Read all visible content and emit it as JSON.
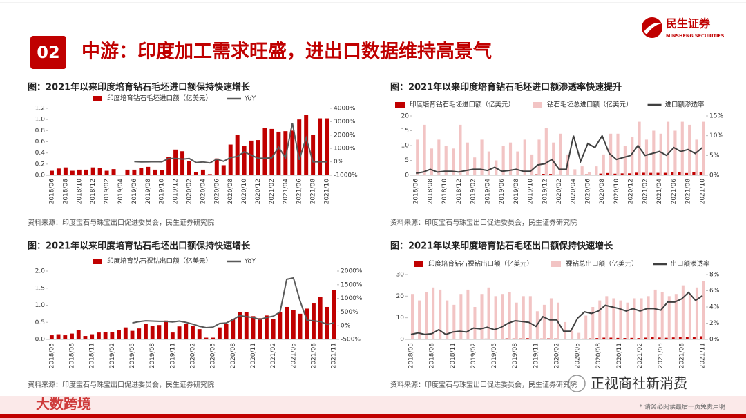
{
  "header": {
    "badge": "02",
    "title": "中游：印度加工需求旺盛，进出口数据维持高景气",
    "logo_cn": "民生证券",
    "logo_en": "MINSHENG SECURITIES"
  },
  "footer": {
    "watermark": "大数跨境",
    "wechat": "正视商社新消费",
    "disclaimer": "* 请务必阅读最后一页免责声明"
  },
  "chart_data": [
    {
      "type": "combo",
      "title": "图：2021年以来印度培育钻石毛坯进口额保持快速增长",
      "source": "资料来源：印度宝石与珠宝出口促进委员会，民生证券研究院",
      "categories": [
        "2018/06",
        null,
        "2018/08",
        null,
        "2018/10",
        null,
        "2018/12",
        null,
        "2019/02",
        null,
        "2019/04",
        null,
        "2019/06",
        null,
        "2019/08",
        null,
        "2019/10",
        null,
        "2019/12",
        null,
        "2020/02",
        null,
        "2020/04",
        null,
        "2020/06",
        null,
        "2020/08",
        null,
        "2020/10",
        null,
        "2020/12",
        null,
        "2021/02",
        null,
        "2021/04",
        null,
        "2021/06",
        null,
        "2021/08",
        null,
        "2021/10"
      ],
      "series": [
        {
          "name": "印度培育钻石毛坯进口额（亿美元）",
          "type": "bar",
          "color": "#c00000",
          "values": [
            0.08,
            0.12,
            0.14,
            0.08,
            0.1,
            0.1,
            0.14,
            0.13,
            0.08,
            0.11,
            null,
            0.1,
            0.1,
            0.13,
            0.15,
            0.1,
            0.09,
            0.33,
            0.46,
            0.43,
            0.25,
            0.05,
            0.1,
            0.02,
            0.3,
            0.18,
            0.55,
            0.73,
            0.52,
            0.62,
            0.63,
            0.85,
            0.83,
            0.78,
            0.79,
            0.8,
            1.0,
            1.08,
            0.73,
            1.02,
            1.02
          ]
        },
        {
          "name": "YoY",
          "type": "line",
          "axis": "y2",
          "color": "#595959",
          "values": [
            null,
            null,
            null,
            null,
            null,
            null,
            null,
            null,
            null,
            null,
            null,
            null,
            20,
            -5,
            0,
            10,
            0,
            250,
            250,
            200,
            250,
            -50,
            -10,
            -80,
            200,
            40,
            320,
            400,
            750,
            500,
            280,
            270,
            300,
            1100,
            300,
            2900,
            150,
            1800,
            0,
            0,
            0
          ]
        }
      ],
      "ylim": [
        0,
        1.2
      ],
      "yticks": [
        {
          "value": 0,
          "label": "0.0"
        },
        0.2,
        0.4,
        0.6,
        0.8,
        {
          "value": 1,
          "label": "1.0"
        },
        1.2
      ],
      "y2lim": [
        -1000,
        4000
      ],
      "y2ticks": [
        {
          "value": -1000,
          "label": "-1000%"
        },
        {
          "value": 0,
          "label": "0%"
        },
        {
          "value": 1000,
          "label": "1000%"
        },
        {
          "value": 2000,
          "label": "2000%"
        },
        {
          "value": 3000,
          "label": "3000%"
        },
        {
          "value": 4000,
          "label": "4000%"
        }
      ]
    },
    {
      "type": "combo",
      "title": "图：2021年以来印度培育钻石毛坯进口额渗透率快速提升",
      "source": "资料来源：印度宝石与珠宝出口促进委员会，民生证券研究院",
      "categories": [
        "2018/06",
        null,
        "2018/08",
        null,
        "2018/10",
        null,
        "2018/12",
        null,
        "2019/02",
        null,
        "2019/04",
        null,
        "2019/06",
        null,
        "2019/08",
        null,
        "2019/10",
        null,
        "2019/12",
        null,
        "2020/02",
        null,
        "2020/04",
        null,
        "2020/06",
        null,
        "2020/08",
        null,
        "2020/10",
        null,
        "2020/12",
        null,
        "2021/02",
        null,
        "2021/04",
        null,
        "2021/06",
        null,
        "2021/08",
        null,
        "2021/10"
      ],
      "series": [
        {
          "name": "印度培育钻石毛坯进口额（亿美元）",
          "type": "bar",
          "color": "#c00000",
          "values": [
            0.08,
            0.12,
            0.14,
            0.08,
            0.1,
            0.1,
            0.14,
            0.13,
            0.08,
            0.11,
            null,
            0.1,
            0.1,
            0.13,
            0.15,
            0.1,
            0.09,
            0.33,
            0.46,
            0.43,
            0.25,
            0.05,
            0.1,
            0.02,
            0.3,
            0.18,
            0.55,
            0.73,
            0.52,
            0.62,
            0.63,
            0.85,
            0.83,
            0.78,
            0.79,
            0.8,
            1.0,
            1.08,
            0.73,
            1.02,
            1.02
          ]
        },
        {
          "name": "钻石毛坯总进口额（亿美元）",
          "type": "bar",
          "color": "#f2c4c4",
          "values": [
            12,
            17,
            9,
            12,
            10,
            9,
            17,
            11,
            6,
            12,
            8,
            5,
            10,
            11,
            8,
            12,
            7,
            12,
            16,
            11,
            14,
            7,
            2,
            3,
            1,
            3,
            7,
            14,
            14,
            10,
            13,
            18,
            12,
            15,
            14,
            18,
            15,
            18,
            17,
            12,
            18
          ]
        },
        {
          "name": "进口额渗透率",
          "type": "line",
          "axis": "y2",
          "color": "#404040",
          "values": [
            0.5,
            0.8,
            1.5,
            0.8,
            1,
            1,
            0.8,
            1.2,
            1.5,
            1.5,
            1.2,
            2,
            1,
            1.2,
            1.5,
            1,
            1,
            2.6,
            2.9,
            4,
            1.5,
            1.5,
            10,
            3.5,
            8,
            7,
            10,
            5.5,
            4,
            4.5,
            5,
            7.5,
            5,
            5.5,
            6,
            5,
            7,
            6,
            6.5,
            5.5,
            7
          ]
        }
      ],
      "ylim": [
        0,
        20
      ],
      "yticks": [
        0,
        5,
        10,
        15,
        20
      ],
      "y2lim": [
        0,
        15
      ],
      "y2ticks": [
        {
          "value": 0,
          "label": "0%"
        },
        {
          "value": 5,
          "label": "5%"
        },
        {
          "value": 10,
          "label": "10%"
        },
        {
          "value": 15,
          "label": "15%"
        }
      ]
    },
    {
      "type": "combo",
      "title": "图：2021年以来印度培育钻石毛坯出口额保持快速增长",
      "source": "资料来源：印度宝石与珠宝出口促进委员会，民生证券研究院",
      "categories": [
        "2018/05",
        null,
        null,
        "2018/08",
        null,
        null,
        "2018/11",
        null,
        null,
        "2019/02",
        null,
        null,
        "2019/05",
        null,
        null,
        "2019/08",
        null,
        null,
        "2019/11",
        null,
        null,
        "2020/02",
        null,
        null,
        "2020/05",
        null,
        null,
        "2020/08",
        null,
        null,
        "2020/11",
        null,
        null,
        "2021/02",
        null,
        null,
        "2021/05",
        null,
        null,
        "2021/08",
        null,
        null,
        "2021/11"
      ],
      "series": [
        {
          "name": "印度培育钻石裸钻出口额（亿美元）",
          "type": "bar",
          "color": "#c00000",
          "values": [
            0.12,
            0.15,
            0.12,
            0.17,
            0.28,
            0.1,
            0.15,
            0.2,
            0.22,
            0.22,
            0.28,
            0.35,
            0.25,
            0.32,
            0.45,
            0.4,
            0.42,
            0.55,
            0.2,
            0.38,
            0.45,
            0.4,
            0.3,
            0.05,
            0.05,
            0.35,
            0.45,
            0.6,
            0.8,
            0.8,
            0.68,
            0.62,
            0.7,
            0.6,
            0.8,
            0.95,
            0.85,
            0.75,
            0.9,
            1.05,
            1.25,
            0.95,
            1.45
          ]
        },
        {
          "name": "YoY",
          "type": "line",
          "axis": "y2",
          "color": "#595959",
          "values": [
            null,
            null,
            null,
            null,
            null,
            null,
            null,
            null,
            null,
            null,
            null,
            null,
            100,
            150,
            180,
            170,
            160,
            160,
            140,
            170,
            120,
            60,
            -20,
            -70,
            -50,
            80,
            100,
            220,
            370,
            330,
            300,
            230,
            300,
            350,
            500,
            1700,
            1750,
            900,
            200,
            180,
            150,
            50,
            100
          ]
        }
      ],
      "ylim": [
        0,
        2
      ],
      "yticks": [
        {
          "value": 0,
          "label": "0.0"
        },
        0.5,
        {
          "value": 1,
          "label": "1.0"
        },
        1.5,
        {
          "value": 2,
          "label": "2.0"
        }
      ],
      "y2lim": [
        -500,
        2000
      ],
      "y2ticks": [
        {
          "value": -500,
          "label": "-500%"
        },
        {
          "value": 0,
          "label": "0%"
        },
        {
          "value": 500,
          "label": "500%"
        },
        {
          "value": 1000,
          "label": "1000%"
        },
        {
          "value": 1500,
          "label": "1500%"
        },
        {
          "value": 2000,
          "label": "2000%"
        }
      ]
    },
    {
      "type": "combo",
      "title": "图：2021年以来印度培育钻石毛坯出口额保持快速增长",
      "source": "资料来源：印度宝石与珠宝出口促进委员会，民生证券研究院",
      "categories": [
        "2018/05",
        null,
        null,
        "2018/08",
        null,
        null,
        "2018/11",
        null,
        null,
        "2019/02",
        null,
        null,
        "2019/05",
        null,
        null,
        "2019/08",
        null,
        null,
        "2019/11",
        null,
        null,
        "2020/02",
        null,
        null,
        "2020/05",
        null,
        null,
        "2020/08",
        null,
        null,
        "2020/11",
        null,
        null,
        "2021/02",
        null,
        null,
        "2021/05",
        null,
        null,
        "2021/08",
        null,
        null,
        "2021/11"
      ],
      "series": [
        {
          "name": "印度培育钻石裸钻出口额（亿美元）",
          "type": "bar",
          "color": "#c00000",
          "values": [
            0.12,
            0.15,
            0.12,
            0.17,
            0.28,
            0.1,
            0.15,
            0.2,
            0.22,
            0.22,
            0.28,
            0.35,
            0.25,
            0.32,
            0.45,
            0.4,
            0.42,
            0.55,
            0.2,
            0.38,
            0.45,
            0.4,
            0.3,
            0.05,
            0.05,
            0.35,
            0.45,
            0.6,
            0.8,
            0.8,
            0.68,
            0.62,
            0.7,
            0.6,
            0.8,
            0.95,
            0.85,
            0.75,
            0.9,
            1.05,
            1.25,
            0.95,
            1.45
          ]
        },
        {
          "name": "裸钻总出口额（亿美元）",
          "type": "bar",
          "color": "#f2c4c4",
          "values": [
            21,
            18,
            22,
            24,
            23,
            18,
            16,
            21,
            23,
            15,
            21,
            24,
            20,
            21,
            22,
            17,
            20,
            20,
            13,
            16,
            19,
            17,
            8,
            4,
            3,
            11,
            15,
            18,
            20,
            19,
            18,
            17,
            19,
            19,
            20,
            23,
            22,
            20,
            21,
            25,
            21,
            24,
            27
          ]
        },
        {
          "name": "出口额渗透率",
          "type": "line",
          "axis": "y2",
          "color": "#404040",
          "values": [
            0.6,
            0.8,
            0.6,
            0.7,
            1.2,
            0.6,
            0.9,
            1.0,
            0.9,
            1.4,
            1.3,
            1.5,
            1.2,
            1.5,
            2.0,
            2.3,
            2.2,
            2.1,
            1.6,
            2.8,
            2.4,
            2.4,
            1.0,
            1.0,
            2.6,
            3.4,
            3.2,
            3.5,
            4.2,
            4.0,
            3.8,
            3.5,
            3.8,
            3.5,
            3.8,
            3.8,
            3.6,
            4.6,
            4.6,
            5.0,
            5.8,
            4.8,
            5.4
          ]
        }
      ],
      "ylim": [
        0,
        30
      ],
      "yticks": [
        0,
        10,
        20,
        30
      ],
      "y2lim": [
        0,
        8
      ],
      "y2ticks": [
        {
          "value": 0,
          "label": "0%"
        },
        {
          "value": 2,
          "label": "2%"
        },
        {
          "value": 4,
          "label": "4%"
        },
        {
          "value": 6,
          "label": "6%"
        },
        {
          "value": 8,
          "label": "8%"
        }
      ]
    }
  ]
}
